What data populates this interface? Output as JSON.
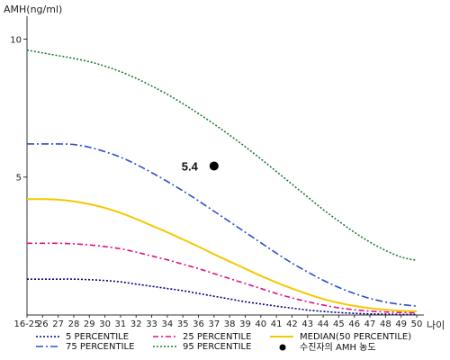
{
  "chart_data": {
    "type": "line",
    "ylabel": "AMH(ng/ml)",
    "xunit_label": "나이",
    "ylim": [
      0,
      10.7
    ],
    "yticks": [
      5,
      10
    ],
    "x_categories": [
      "16-25",
      "26",
      "27",
      "28",
      "29",
      "30",
      "31",
      "32",
      "33",
      "34",
      "35",
      "36",
      "37",
      "38",
      "39",
      "40",
      "41",
      "42",
      "43",
      "44",
      "45",
      "46",
      "47",
      "48",
      "49",
      "50"
    ],
    "series": [
      {
        "name": "5 PERCENTILE",
        "color": "#000080",
        "dash": "2,2",
        "values": [
          1.3,
          1.3,
          1.3,
          1.3,
          1.28,
          1.25,
          1.2,
          1.12,
          1.04,
          0.96,
          0.88,
          0.78,
          0.68,
          0.58,
          0.48,
          0.4,
          0.32,
          0.25,
          0.18,
          0.13,
          0.09,
          0.06,
          0.04,
          0.03,
          0.02,
          0.02
        ]
      },
      {
        "name": "25 PERCENTILE",
        "color": "#e0118a",
        "dash": "6,3,2,3",
        "values": [
          2.6,
          2.6,
          2.6,
          2.58,
          2.54,
          2.48,
          2.4,
          2.28,
          2.14,
          2.0,
          1.84,
          1.68,
          1.5,
          1.32,
          1.14,
          0.96,
          0.78,
          0.62,
          0.48,
          0.36,
          0.26,
          0.19,
          0.14,
          0.11,
          0.09,
          0.08
        ]
      },
      {
        "name": "MEDIAN(50 PERCENTILE)",
        "color": "#f5c800",
        "dash": "",
        "values": [
          4.2,
          4.2,
          4.18,
          4.12,
          4.02,
          3.88,
          3.7,
          3.48,
          3.24,
          3.0,
          2.74,
          2.48,
          2.2,
          1.94,
          1.68,
          1.42,
          1.18,
          0.96,
          0.76,
          0.58,
          0.44,
          0.33,
          0.25,
          0.19,
          0.15,
          0.13
        ]
      },
      {
        "name": "75 PERCENTILE",
        "color": "#2a50c8",
        "dash": "8,3,2,3",
        "values": [
          6.2,
          6.2,
          6.2,
          6.18,
          6.08,
          5.92,
          5.72,
          5.46,
          5.16,
          4.84,
          4.5,
          4.14,
          3.76,
          3.38,
          3.0,
          2.62,
          2.24,
          1.88,
          1.56,
          1.26,
          1.0,
          0.78,
          0.6,
          0.47,
          0.38,
          0.32
        ]
      },
      {
        "name": "95 PERCENTILE",
        "color": "#1f7a3a",
        "dash": "2,2",
        "values": [
          9.6,
          9.5,
          9.4,
          9.3,
          9.18,
          9.02,
          8.82,
          8.58,
          8.3,
          8.0,
          7.66,
          7.3,
          6.92,
          6.52,
          6.1,
          5.66,
          5.2,
          4.74,
          4.28,
          3.82,
          3.4,
          3.0,
          2.64,
          2.34,
          2.1,
          1.98
        ]
      }
    ],
    "marker": {
      "name": "수진자의 AMH 농도",
      "x": "37",
      "y": 5.4,
      "label": "5.4",
      "color": "#000000"
    },
    "grid": false,
    "legend_position": "bottom"
  }
}
